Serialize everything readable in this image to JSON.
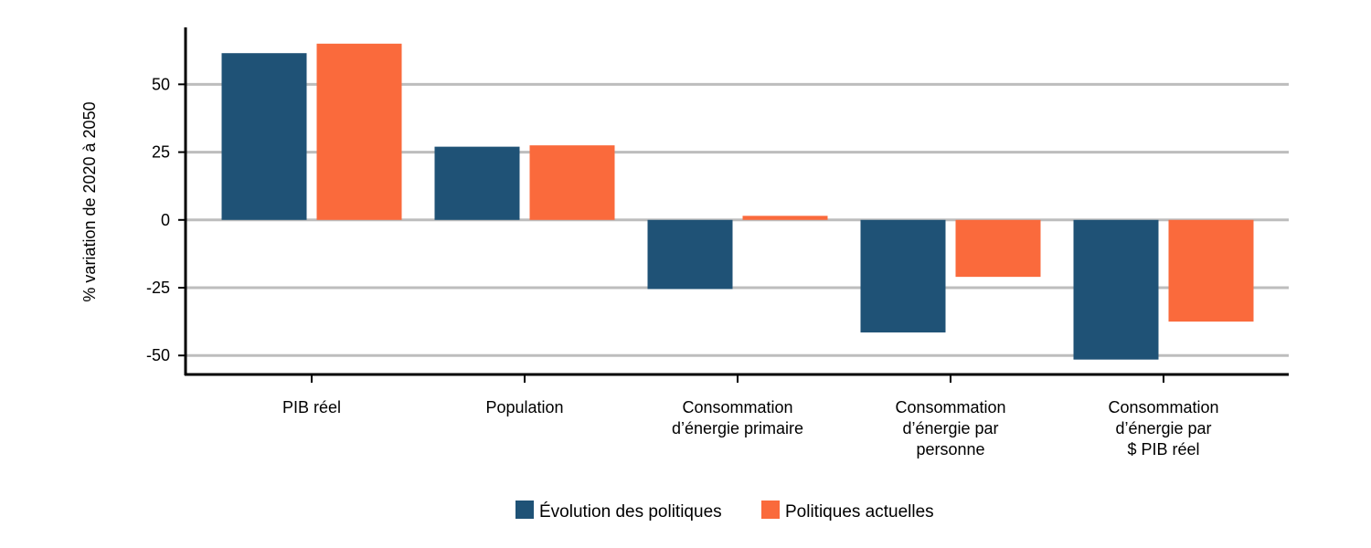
{
  "chart_data": {
    "type": "bar",
    "ylabel": "% variation de 2020 à 2050",
    "ylim": [
      -57,
      71
    ],
    "yticks": [
      50,
      25,
      0,
      -25,
      -50
    ],
    "ytick_labels": [
      "50",
      "25",
      "0",
      "-25",
      "-50"
    ],
    "categories": [
      [
        "PIB réel"
      ],
      [
        "Population"
      ],
      [
        "Consommation",
        "d’énergie primaire"
      ],
      [
        "Consommation",
        "d’énergie par",
        "personne"
      ],
      [
        "Consommation",
        "d’énergie par",
        "$ PIB réel"
      ]
    ],
    "series": [
      {
        "name": "Évolution des politiques",
        "color": "#1f5276",
        "values": [
          61.5,
          27,
          -25.5,
          -41.5,
          -51.5
        ]
      },
      {
        "name": "Politiques actuelles",
        "color": "#fa6a3c",
        "values": [
          65,
          27.5,
          1.5,
          -21,
          -37.5
        ]
      }
    ],
    "grid": true,
    "legend_position": "bottom-center"
  }
}
